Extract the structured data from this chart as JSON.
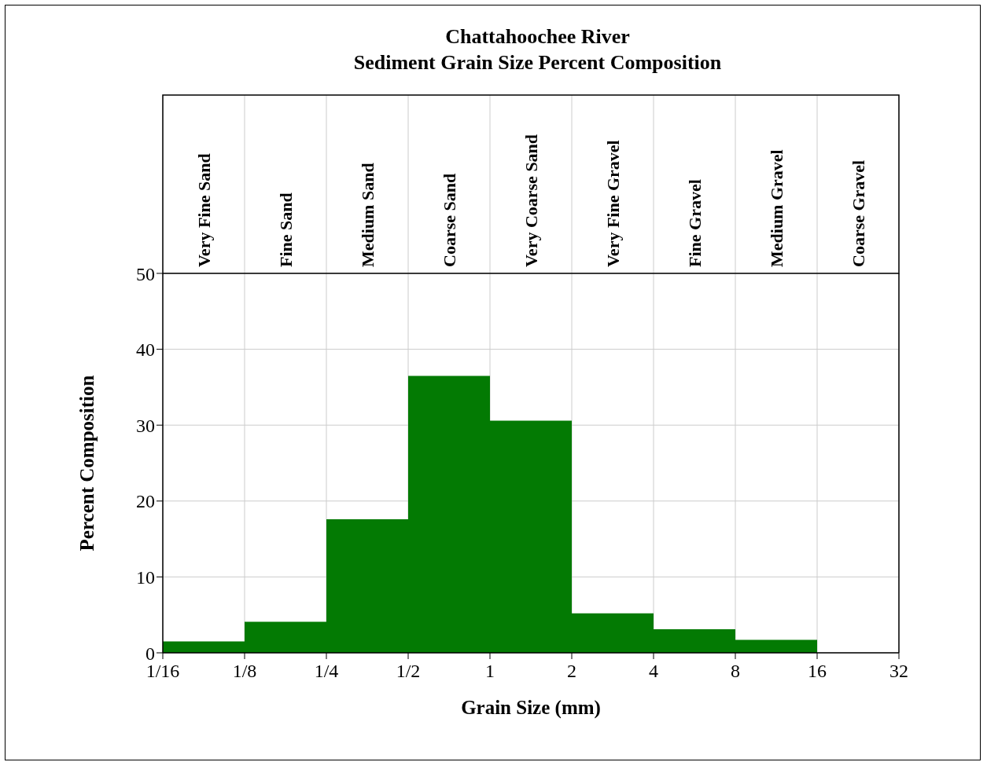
{
  "chart_data": {
    "type": "histogram",
    "title": "Chattahoochee River",
    "subtitle": "Sediment Grain Size Percent Composition",
    "xlabel": "Grain Size (mm)",
    "ylabel": "Percent Composition",
    "bins": [
      0.0625,
      0.125,
      0.25,
      0.5,
      1,
      2,
      4,
      8,
      16,
      32
    ],
    "values": [
      1.5,
      4.1,
      17.6,
      36.5,
      30.6,
      5.2,
      3.1,
      1.7,
      0
    ],
    "color": "#037a03",
    "log": "x",
    "xlim": [
      0.0625,
      32
    ],
    "xticks": [
      {
        "value": 0.0625,
        "label": "1/16"
      },
      {
        "value": 0.125,
        "label": "1/8"
      },
      {
        "value": 0.25,
        "label": "1/4"
      },
      {
        "value": 0.5,
        "label": "1/2"
      },
      1,
      2,
      4,
      8,
      16,
      32
    ],
    "ylim": [
      0,
      50
    ],
    "yticks": [
      0,
      10,
      20,
      30,
      40,
      50
    ],
    "grid": true,
    "annotations": [
      "Very Fine Sand",
      "Fine Sand",
      "Medium Sand",
      "Coarse Sand",
      "Very Coarse Sand",
      "Very Fine Gravel",
      "Fine Gravel",
      "Medium Gravel",
      "Coarse Gravel"
    ]
  }
}
